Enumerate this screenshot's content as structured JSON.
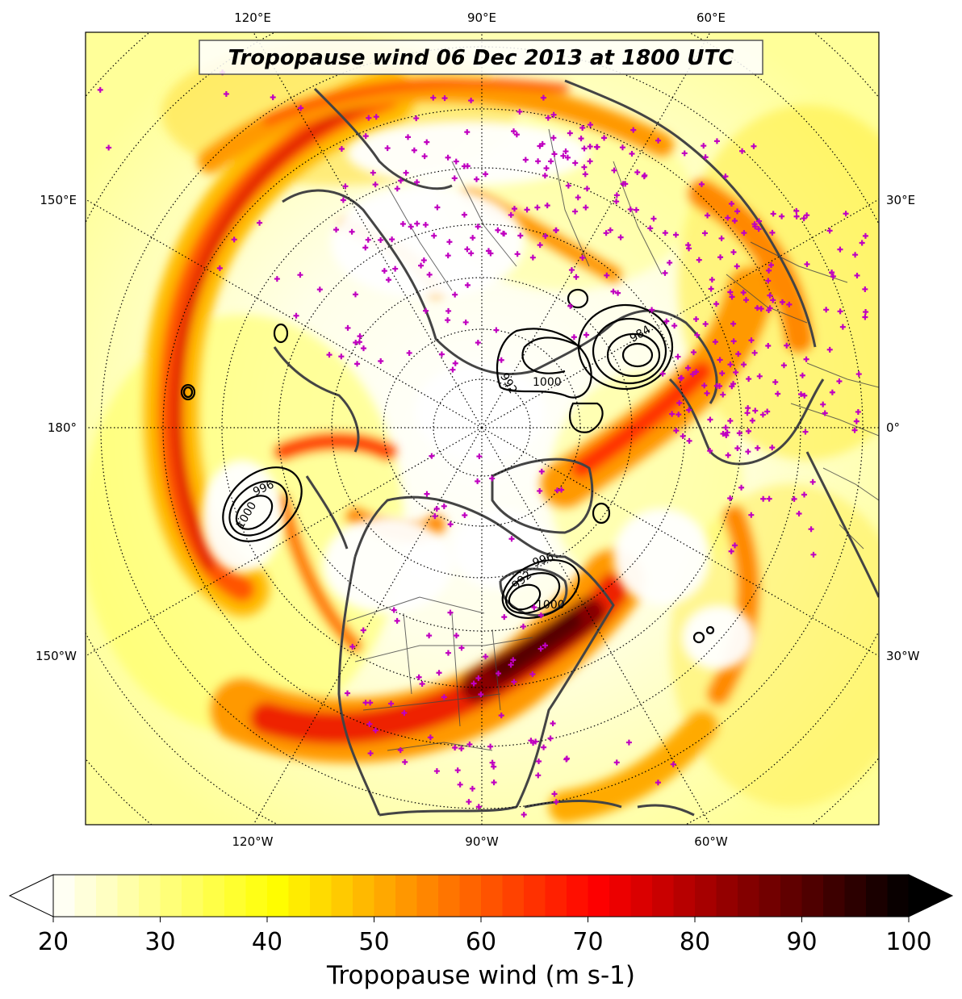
{
  "map": {
    "title": "Tropopause wind 06 Dec 2013 at 1800 UTC",
    "projection": "north-polar-stereographic",
    "longitude_labels": {
      "top": [
        "120°E",
        "90°E",
        "60°E"
      ],
      "bottom": [
        "120°W",
        "90°W",
        "60°W"
      ],
      "left": [
        "150°E",
        "180°",
        "150°W"
      ],
      "right": [
        "30°E",
        "0°",
        "30°W"
      ]
    },
    "contour_labels": [
      "1000",
      "996",
      "1000",
      "984",
      "992",
      "1000",
      "996",
      "992",
      "1000"
    ],
    "station_marker_color": "#c000c0",
    "coastline_color": "#444444"
  },
  "colorbar": {
    "label": "Tropopause wind (m s-1)",
    "ticks": [
      "20",
      "30",
      "40",
      "50",
      "60",
      "70",
      "80",
      "90",
      "100"
    ],
    "min": 20,
    "max": 100,
    "step": 2,
    "extend": "both",
    "colormap": "hot_r"
  }
}
